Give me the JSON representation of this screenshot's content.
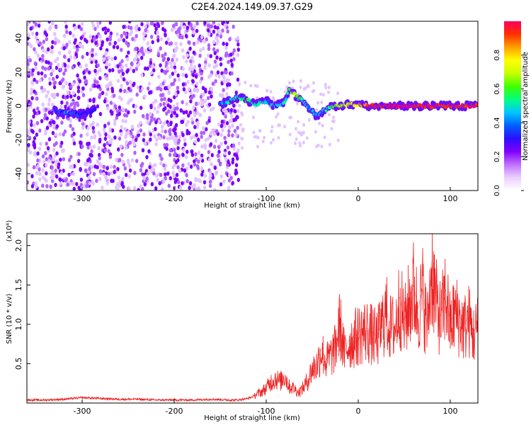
{
  "title": "C2E4.2024.149.09.37.G29",
  "colors": {
    "snr_line": "#ee2222",
    "frame": "#000000",
    "colormap": [
      "#ffffff",
      "#ead0ff",
      "#c070ff",
      "#8000ff",
      "#2a10ff",
      "#0060ff",
      "#00c8ff",
      "#00ff80",
      "#40ff00",
      "#c8ff00",
      "#ffff00",
      "#ffa000",
      "#ff3000",
      "#ff0060"
    ]
  },
  "chart_data": [
    {
      "type": "heatmap",
      "xlabel": "Height of straight line (km)",
      "ylabel": "Frequency (Hz)",
      "xlim": [
        -360,
        130
      ],
      "ylim": [
        -50,
        50
      ],
      "xticks": [
        -300,
        -200,
        -100,
        0,
        100
      ],
      "yticks": [
        -40,
        -20,
        0,
        20,
        40
      ],
      "colorbar": {
        "label": "Normalized spectral amplitude",
        "range": [
          0,
          1
        ],
        "ticks": [
          "0.0",
          "0.2",
          "0.4",
          "0.6",
          "0.8"
        ]
      },
      "signal_trace": [
        {
          "x": -330,
          "f": -3,
          "level": 0.35
        },
        {
          "x": -315,
          "f": -4,
          "level": 0.4
        },
        {
          "x": -300,
          "f": -5,
          "level": 0.3
        },
        {
          "x": -285,
          "f": -2,
          "level": 0.3
        },
        {
          "x": -150,
          "f": 1,
          "level": 0.35
        },
        {
          "x": -140,
          "f": 3,
          "level": 0.5
        },
        {
          "x": -130,
          "f": 5,
          "level": 0.5
        },
        {
          "x": -120,
          "f": 3,
          "level": 0.55
        },
        {
          "x": -110,
          "f": 1,
          "level": 0.5
        },
        {
          "x": -100,
          "f": 3,
          "level": 0.45
        },
        {
          "x": -90,
          "f": 0,
          "level": 0.5
        },
        {
          "x": -80,
          "f": 2,
          "level": 0.5
        },
        {
          "x": -75,
          "f": 10,
          "level": 0.6
        },
        {
          "x": -68,
          "f": 6,
          "level": 0.65
        },
        {
          "x": -60,
          "f": 3,
          "level": 0.5
        },
        {
          "x": -52,
          "f": -2,
          "level": 0.45
        },
        {
          "x": -45,
          "f": -6,
          "level": 0.4
        },
        {
          "x": -38,
          "f": -3,
          "level": 0.45
        },
        {
          "x": -30,
          "f": -1,
          "level": 0.55
        },
        {
          "x": -20,
          "f": 0,
          "level": 0.65
        },
        {
          "x": -10,
          "f": 1,
          "level": 0.7
        },
        {
          "x": 0,
          "f": 1,
          "level": 0.75
        },
        {
          "x": 10,
          "f": 0,
          "level": 0.95
        },
        {
          "x": 30,
          "f": 0,
          "level": 1.0
        },
        {
          "x": 50,
          "f": 0,
          "level": 1.0
        },
        {
          "x": 70,
          "f": 0,
          "level": 0.95
        },
        {
          "x": 90,
          "f": 0,
          "level": 0.95
        },
        {
          "x": 110,
          "f": 0,
          "level": 0.95
        },
        {
          "x": 130,
          "f": 0,
          "level": 0.95
        }
      ]
    },
    {
      "type": "line",
      "xlabel": "Height of straight line (km)",
      "ylabel": "SNR (10 * v/v)",
      "yscale_label": "(x10⁴)",
      "xlim": [
        -360,
        130
      ],
      "ylim": [
        0,
        2.15
      ],
      "xticks": [
        -300,
        -200,
        -100,
        0,
        100
      ],
      "yticks": [
        "0.5",
        "1.0",
        "1.5",
        "2.0"
      ],
      "series": [
        {
          "x": [
            -360,
            -340,
            -320,
            -300,
            -280,
            -260,
            -240,
            -220,
            -200,
            -180,
            -160,
            -140,
            -130,
            -120,
            -115,
            -110,
            -105,
            -100,
            -95,
            -90,
            -85,
            -80,
            -75,
            -70,
            -65,
            -60,
            -55,
            -50,
            -45,
            -40,
            -35,
            -30,
            -25,
            -20,
            -15,
            -10,
            -5,
            0,
            5,
            10,
            15,
            20,
            25,
            30,
            35,
            40,
            45,
            50,
            55,
            60,
            65,
            70,
            75,
            80,
            85,
            90,
            95,
            100,
            105,
            110,
            115,
            120,
            125,
            130
          ],
          "values": [
            0.04,
            0.04,
            0.05,
            0.07,
            0.06,
            0.05,
            0.05,
            0.04,
            0.04,
            0.04,
            0.05,
            0.04,
            0.04,
            0.06,
            0.08,
            0.12,
            0.15,
            0.2,
            0.28,
            0.33,
            0.28,
            0.36,
            0.22,
            0.2,
            0.14,
            0.2,
            0.3,
            0.45,
            0.5,
            0.7,
            0.55,
            0.62,
            0.72,
            1.05,
            0.65,
            0.8,
            0.85,
            0.9,
            0.95,
            0.95,
            0.9,
            0.85,
            1.0,
            1.2,
            1.0,
            1.0,
            1.35,
            1.05,
            1.3,
            1.5,
            1.2,
            1.45,
            1.0,
            1.8,
            1.3,
            1.1,
            1.45,
            1.0,
            1.2,
            1.1,
            1.0,
            1.1,
            0.9,
            1.0
          ]
        }
      ]
    }
  ]
}
